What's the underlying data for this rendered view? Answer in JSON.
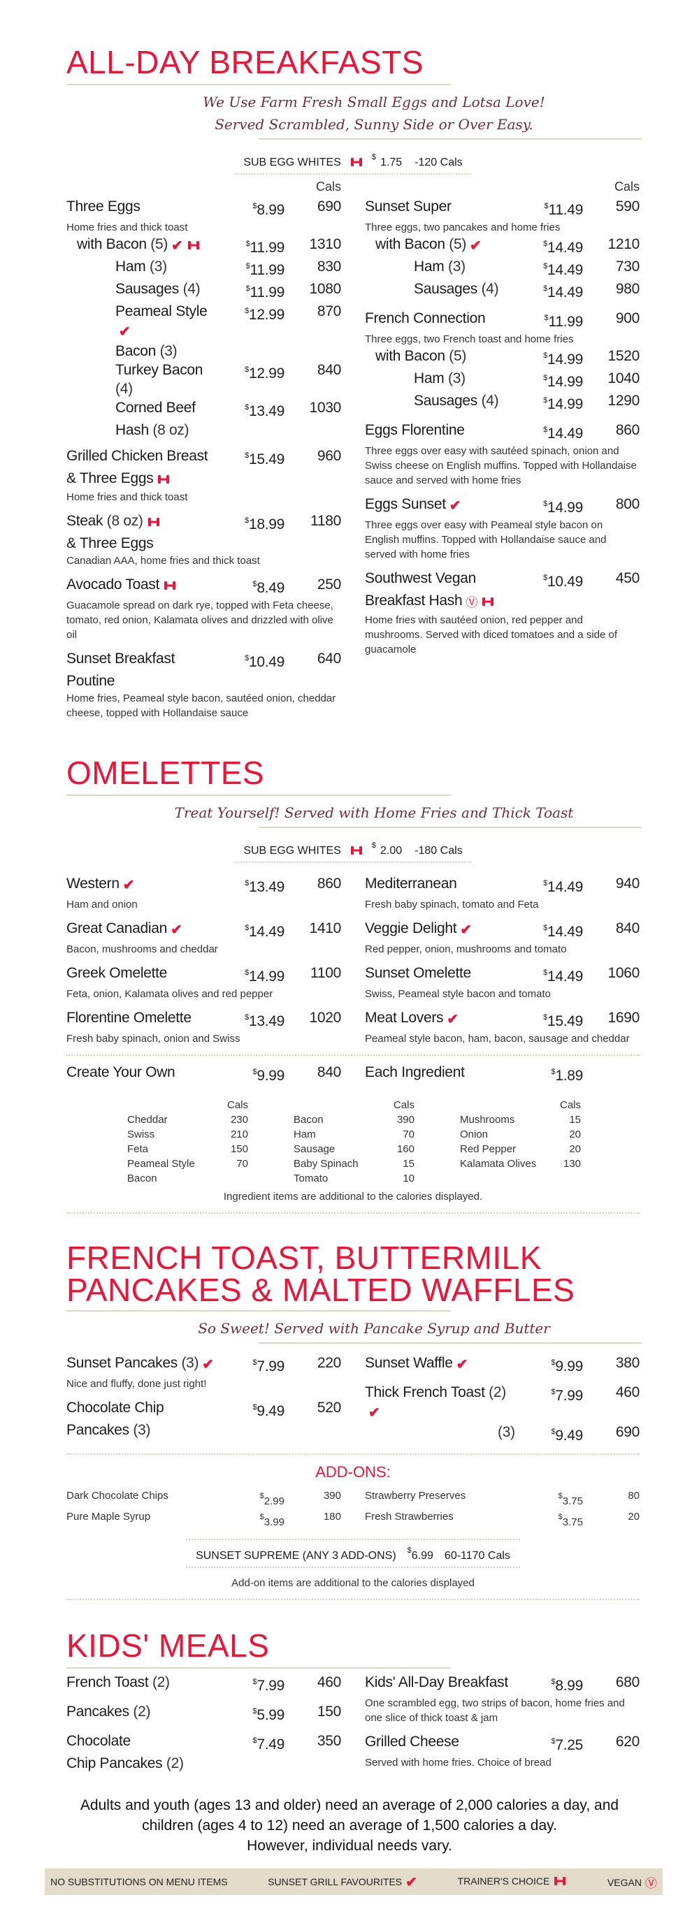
{
  "currency": "$",
  "colors": {
    "accent": "#e8173a",
    "rule": "#dcd6c8",
    "footer_bg": "#e4dccb"
  },
  "icons": {
    "favourite": "check-icon",
    "trainers-choice": "dumbbell-icon",
    "vegan": "vegan-v-icon"
  },
  "breakfasts": {
    "title": "ALL-DAY BREAKFASTS",
    "tagline": [
      "We Use Farm Fresh Small Eggs and Lotsa Love!",
      "Served Scrambled, Sunny Side or Over Easy."
    ],
    "sub_egg": {
      "label": "SUB EGG WHITES",
      "icons": [
        "trainers-choice"
      ],
      "price": "1.75",
      "cals": "-120 Cals"
    },
    "cals_header": "Cals",
    "left": [
      {
        "lines": [
          {
            "text": "Three Eggs"
          }
        ],
        "price": "8.99",
        "cals": "690",
        "desc": "Home fries and thick toast",
        "subs": [
          {
            "indent": 1,
            "lines": [
              {
                "text": "with Bacon",
                "qual": "(5)",
                "icons": [
                  "favourite",
                  "trainers-choice"
                ]
              }
            ],
            "price": "11.99",
            "cals": "1310"
          },
          {
            "indent": 2,
            "lines": [
              {
                "text": "Ham",
                "qual": "(3)"
              }
            ],
            "price": "11.99",
            "cals": "830"
          },
          {
            "indent": 2,
            "lines": [
              {
                "text": "Sausages",
                "qual": "(4)"
              }
            ],
            "price": "11.99",
            "cals": "1080"
          },
          {
            "indent": 2,
            "lines": [
              {
                "text": "Peameal Style",
                "icons": [
                  "favourite"
                ]
              },
              {
                "text": "Bacon",
                "qual": "(3)"
              }
            ],
            "price": "12.99",
            "cals": "870"
          },
          {
            "indent": 2,
            "lines": [
              {
                "text": "Turkey Bacon",
                "qual": "(4)"
              }
            ],
            "price": "12.99",
            "cals": "840"
          },
          {
            "indent": 2,
            "lines": [
              {
                "text": "Corned Beef"
              },
              {
                "text": "Hash",
                "qual": "(8 oz)"
              }
            ],
            "price": "13.49",
            "cals": "1030"
          }
        ]
      },
      {
        "lines": [
          {
            "text": "Grilled Chicken Breast"
          },
          {
            "text": "& Three Eggs",
            "icons": [
              "trainers-choice"
            ]
          }
        ],
        "price": "15.49",
        "cals": "960",
        "desc": "Home fries and thick toast"
      },
      {
        "lines": [
          {
            "text": "Steak",
            "qual": "(8 oz)",
            "icons": [
              "trainers-choice"
            ]
          },
          {
            "text": "& Three Eggs"
          }
        ],
        "price": "18.99",
        "cals": "1180",
        "desc": "Canadian AAA, home fries and thick toast"
      },
      {
        "lines": [
          {
            "text": "Avocado Toast",
            "icons": [
              "trainers-choice"
            ]
          }
        ],
        "price": "8.49",
        "cals": "250",
        "desc": "Guacamole spread on dark rye, topped with Feta cheese, tomato, red onion, Kalamata olives and drizzled with olive oil"
      },
      {
        "lines": [
          {
            "text": "Sunset Breakfast"
          },
          {
            "text": "Poutine"
          }
        ],
        "price": "10.49",
        "cals": "640",
        "desc": "Home fries, Peameal style bacon, sautéed onion, cheddar cheese, topped with Hollandaise sauce"
      }
    ],
    "right": [
      {
        "lines": [
          {
            "text": "Sunset Super"
          }
        ],
        "price": "11.49",
        "cals": "590",
        "desc": "Three eggs, two pancakes and home fries",
        "subs": [
          {
            "indent": 1,
            "lines": [
              {
                "text": "with Bacon",
                "qual": "(5)",
                "icons": [
                  "favourite"
                ]
              }
            ],
            "price": "14.49",
            "cals": "1210"
          },
          {
            "indent": 2,
            "lines": [
              {
                "text": "Ham",
                "qual": "(3)"
              }
            ],
            "price": "14.49",
            "cals": "730"
          },
          {
            "indent": 2,
            "lines": [
              {
                "text": "Sausages",
                "qual": "(4)"
              }
            ],
            "price": "14.49",
            "cals": "980"
          }
        ]
      },
      {
        "lines": [
          {
            "text": "French Connection"
          }
        ],
        "price": "11.99",
        "cals": "900",
        "desc": "Three eggs, two French toast and home fries",
        "subs": [
          {
            "indent": 1,
            "lines": [
              {
                "text": "with Bacon",
                "qual": "(5)"
              }
            ],
            "price": "14.99",
            "cals": "1520"
          },
          {
            "indent": 2,
            "lines": [
              {
                "text": "Ham",
                "qual": "(3)"
              }
            ],
            "price": "14.99",
            "cals": "1040"
          },
          {
            "indent": 2,
            "lines": [
              {
                "text": "Sausages",
                "qual": "(4)"
              }
            ],
            "price": "14.99",
            "cals": "1290"
          }
        ]
      },
      {
        "lines": [
          {
            "text": "Eggs Florentine"
          }
        ],
        "price": "14.49",
        "cals": "860",
        "desc": "Three eggs over easy with sautéed spinach, onion and Swiss cheese on English muffins. Topped with Hollandaise sauce and served with home fries"
      },
      {
        "lines": [
          {
            "text": "Eggs Sunset",
            "icons": [
              "favourite"
            ]
          }
        ],
        "price": "14.99",
        "cals": "800",
        "desc": "Three eggs over easy with Peameal style bacon on English muffins. Topped with Hollandaise sauce and served with home fries"
      },
      {
        "lines": [
          {
            "text": "Southwest Vegan"
          },
          {
            "text": "Breakfast Hash",
            "icons": [
              "vegan",
              "trainers-choice"
            ]
          }
        ],
        "price": "10.49",
        "cals": "450",
        "desc": "Home fries with sautéed onion, red pepper and mushrooms. Served with diced tomatoes and a side of guacamole"
      }
    ]
  },
  "omelettes": {
    "title": "OMELETTES",
    "tagline": [
      "Treat Yourself! Served with Home Fries and Thick Toast"
    ],
    "sub_egg": {
      "label": "SUB EGG WHITES",
      "icons": [
        "trainers-choice"
      ],
      "price": "2.00",
      "cals": "-180 Cals"
    },
    "left": [
      {
        "lines": [
          {
            "text": "Western",
            "icons": [
              "favourite"
            ]
          }
        ],
        "price": "13.49",
        "cals": "860",
        "desc": "Ham and onion"
      },
      {
        "lines": [
          {
            "text": "Great Canadian",
            "icons": [
              "favourite"
            ]
          }
        ],
        "price": "14.49",
        "cals": "1410",
        "desc": "Bacon, mushrooms and cheddar"
      },
      {
        "lines": [
          {
            "text": "Greek Omelette"
          }
        ],
        "price": "14.99",
        "cals": "1100",
        "desc": "Feta, onion, Kalamata olives and red pepper"
      },
      {
        "lines": [
          {
            "text": "Florentine Omelette"
          }
        ],
        "price": "13.49",
        "cals": "1020",
        "desc": "Fresh baby spinach, onion and Swiss"
      }
    ],
    "right": [
      {
        "lines": [
          {
            "text": "Mediterranean"
          }
        ],
        "price": "14.49",
        "cals": "940",
        "desc": "Fresh baby spinach, tomato and Feta"
      },
      {
        "lines": [
          {
            "text": "Veggie Delight",
            "icons": [
              "favourite"
            ]
          }
        ],
        "price": "14.49",
        "cals": "840",
        "desc": "Red pepper, onion, mushrooms and tomato"
      },
      {
        "lines": [
          {
            "text": "Sunset Omelette"
          }
        ],
        "price": "14.49",
        "cals": "1060",
        "desc": "Swiss, Peameal style bacon and tomato"
      },
      {
        "lines": [
          {
            "text": "Meat Lovers",
            "icons": [
              "favourite"
            ]
          }
        ],
        "price": "15.49",
        "cals": "1690",
        "desc": "Peameal style bacon, ham, bacon, sausage and cheddar"
      }
    ],
    "create_left": [
      {
        "lines": [
          {
            "text": "Create Your Own"
          }
        ],
        "price": "9.99",
        "cals": "840"
      }
    ],
    "create_right": [
      {
        "lines": [
          {
            "text": "Each Ingredient"
          }
        ],
        "price": "1.89",
        "cals": ""
      }
    ],
    "ingredients_header": "Cals",
    "ingredients": [
      [
        {
          "name": "Cheddar",
          "cals": "230"
        },
        {
          "name": "Swiss",
          "cals": "210"
        },
        {
          "name": "Feta",
          "cals": "150"
        },
        {
          "name": "Peameal Style Bacon",
          "cals": "70"
        }
      ],
      [
        {
          "name": "Bacon",
          "cals": "390"
        },
        {
          "name": "Ham",
          "cals": "70"
        },
        {
          "name": "Sausage",
          "cals": "160"
        },
        {
          "name": "Baby Spinach",
          "cals": "15"
        },
        {
          "name": "Tomato",
          "cals": "10"
        }
      ],
      [
        {
          "name": "Mushrooms",
          "cals": "15"
        },
        {
          "name": "Onion",
          "cals": "20"
        },
        {
          "name": "Red Pepper",
          "cals": "20"
        },
        {
          "name": "Kalamata Olives",
          "cals": "130"
        }
      ]
    ],
    "note": "Ingredient items are additional to the calories displayed."
  },
  "pancakes": {
    "title": [
      "FRENCH TOAST, BUTTERMILK",
      "PANCAKES & MALTED WAFFLES"
    ],
    "tagline": [
      "So Sweet! Served with Pancake Syrup and Butter"
    ],
    "left": [
      {
        "lines": [
          {
            "text": "Sunset Pancakes",
            "qual": "(3)",
            "icons": [
              "favourite"
            ]
          }
        ],
        "price": "7.99",
        "cals": "220",
        "desc": "Nice and fluffy, done just right!"
      },
      {
        "lines": [
          {
            "text": "Chocolate Chip"
          },
          {
            "text": "Pancakes",
            "qual": "(3)"
          }
        ],
        "price": "9.49",
        "cals": "520"
      }
    ],
    "right": [
      {
        "lines": [
          {
            "text": "Sunset Waffle",
            "icons": [
              "favourite"
            ]
          }
        ],
        "price": "9.99",
        "cals": "380"
      },
      {
        "lines": [
          {
            "text": "Thick French Toast",
            "qual": "(2)",
            "icons": [
              "favourite"
            ]
          }
        ],
        "price": "7.99",
        "cals": "460",
        "subs": [
          {
            "indent": 3,
            "lines": [
              {
                "text": "",
                "qual": "(3)"
              }
            ],
            "price": "9.49",
            "cals": "690"
          }
        ]
      }
    ],
    "addons_title": "ADD-ONS:",
    "addons_left": [
      {
        "name": "Dark Chocolate Chips",
        "price": "2.99",
        "cals": "390"
      },
      {
        "name": "Pure Maple Syrup",
        "price": "3.99",
        "cals": "180"
      }
    ],
    "addons_right": [
      {
        "name": "Strawberry Preserves",
        "price": "3.75",
        "cals": "80"
      },
      {
        "name": "Fresh Strawberries",
        "price": "3.75",
        "cals": "20"
      }
    ],
    "supreme": {
      "label": "SUNSET SUPREME (ANY 3 ADD-ONS)",
      "price": "6.99",
      "cals": "60-1170 Cals"
    },
    "note": "Add-on items are additional to the calories displayed"
  },
  "kids": {
    "title": "KIDS' MEALS",
    "left": [
      {
        "lines": [
          {
            "text": "French Toast",
            "qual": "(2)"
          }
        ],
        "price": "7.99",
        "cals": "460"
      },
      {
        "lines": [
          {
            "text": "Pancakes",
            "qual": "(2)"
          }
        ],
        "price": "5.99",
        "cals": "150"
      },
      {
        "lines": [
          {
            "text": "Chocolate"
          },
          {
            "text": "Chip Pancakes",
            "qual": "(2)"
          }
        ],
        "price": "7.49",
        "cals": "350"
      }
    ],
    "right": [
      {
        "lines": [
          {
            "text": "Kids' All-Day Breakfast"
          }
        ],
        "price": "8.99",
        "cals": "680",
        "desc": "One scrambled egg, two strips of bacon, home fries and one slice of thick toast & jam"
      },
      {
        "lines": [
          {
            "text": "Grilled Cheese"
          }
        ],
        "price": "7.25",
        "cals": "620",
        "desc": "Served with home fries. Choice of bread"
      }
    ]
  },
  "disclaimer": [
    "Adults and youth (ages 13 and older) need an average of 2,000 calories a day, and",
    "children (ages 4 to 12) need an average of 1,500 calories a day.",
    "However, individual needs vary."
  ],
  "footer": [
    {
      "label": "NO SUBSTITUTIONS ON MENU ITEMS",
      "icons": []
    },
    {
      "label": "SUNSET GRILL FAVOURITES",
      "icons": [
        "favourite"
      ]
    },
    {
      "label": "TRAINER'S CHOICE",
      "icons": [
        "trainers-choice"
      ]
    },
    {
      "label": "VEGAN",
      "icons": [
        "vegan"
      ]
    }
  ]
}
